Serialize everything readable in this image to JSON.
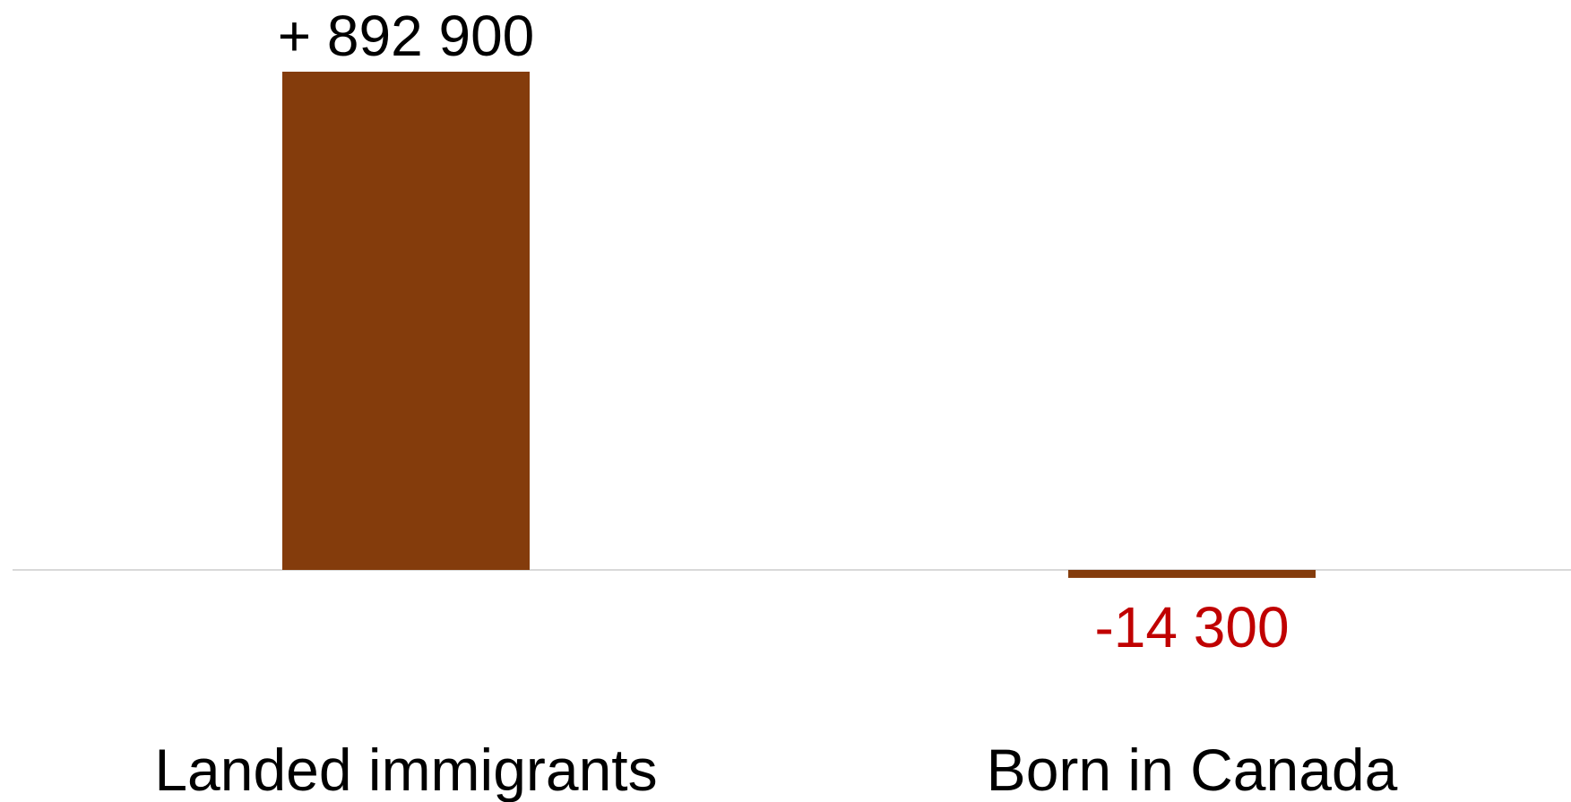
{
  "chart_data": {
    "type": "bar",
    "title": "",
    "xlabel": "",
    "ylabel": "",
    "categories": [
      "Landed immigrants",
      "Born in Canada"
    ],
    "values": [
      892900,
      -14300
    ],
    "data_labels": [
      "+ 892 900",
      "-14 300"
    ],
    "ylim": [
      -14300,
      892900
    ],
    "grid": false,
    "legend": "none",
    "bar_color": "#843C0C",
    "label_colors": [
      "#000000",
      "#C00000"
    ],
    "axis_color": "#D9D9D9"
  }
}
